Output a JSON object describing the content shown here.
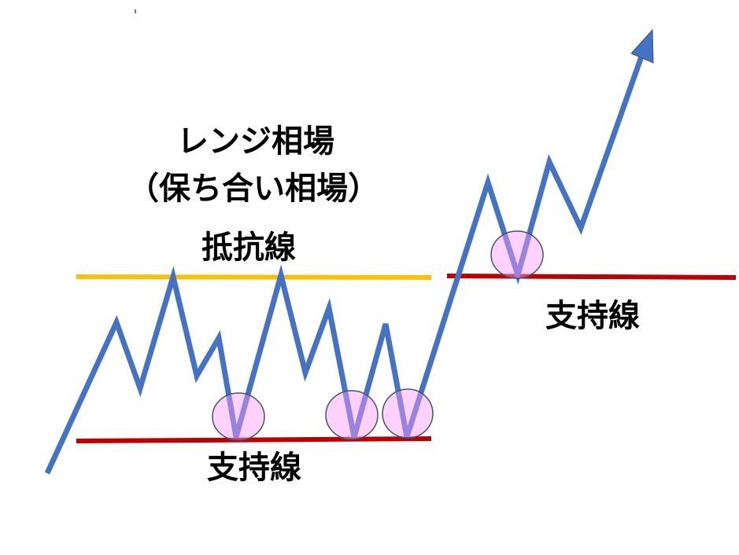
{
  "title_line1": "レンジ相場",
  "title_line2": "（保ち合い相場）",
  "resistance_label": "抵抗線",
  "support_label_left": "支持線",
  "support_label_right": "支持線",
  "colors": {
    "price_line": "#4472C4",
    "resistance_line": "#FFC000",
    "support_line": "#C00000",
    "touch_circle_fill": "#FF99FF",
    "touch_circle_stroke": "#44546A"
  },
  "icons": [
    "arrow-up-right-icon"
  ]
}
